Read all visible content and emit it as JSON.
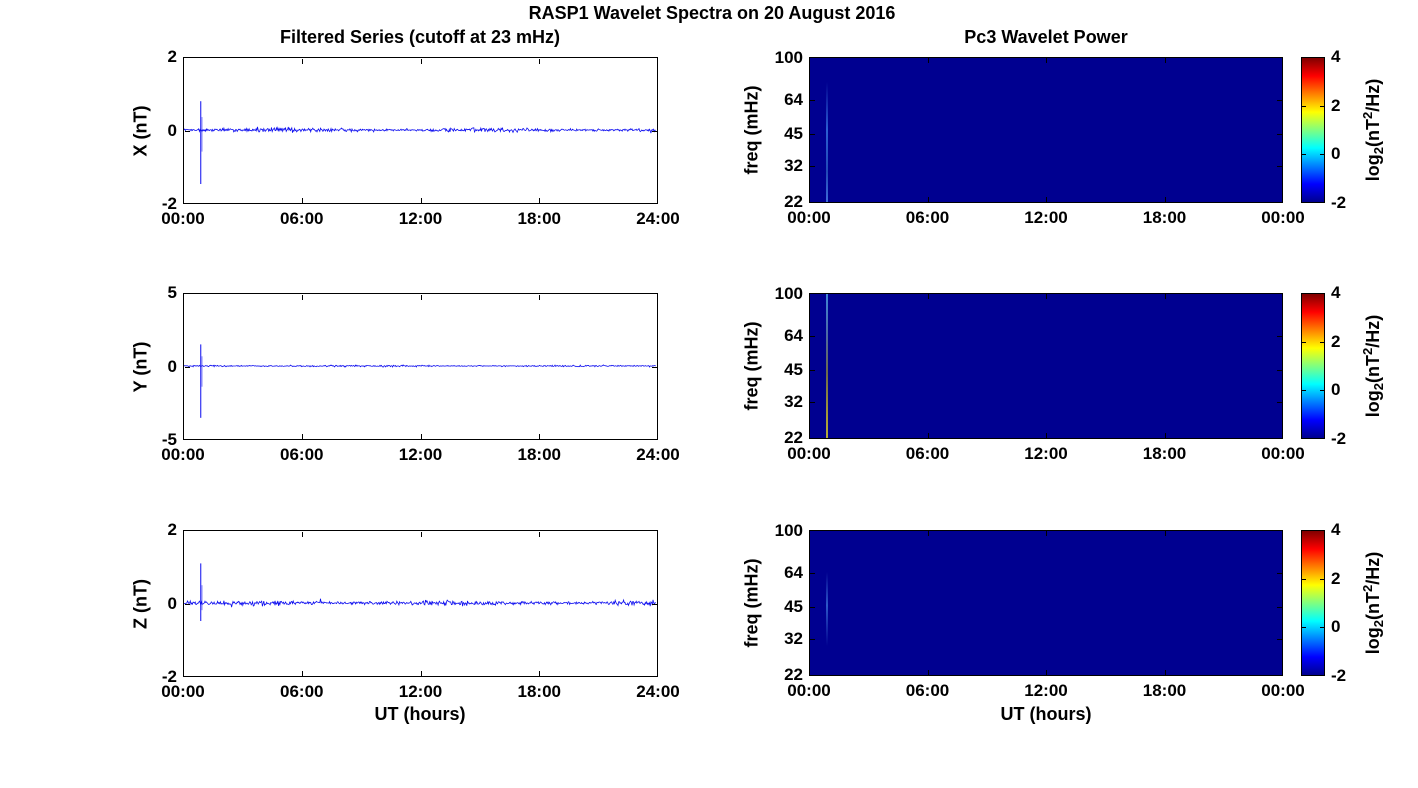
{
  "figure": {
    "title": "RASP1 Wavelet Spectra on 20 August 2016"
  },
  "left": {
    "title": "Filtered Series (cutoff at 23 mHz)",
    "xlabel": "UT (hours)",
    "xtick_labels": [
      "00:00",
      "06:00",
      "12:00",
      "18:00",
      "24:00"
    ],
    "line_color": "#0000ee",
    "panels": [
      {
        "ylabel": "X (nT)",
        "ytick_labels": [
          "2",
          "0",
          "-2"
        ]
      },
      {
        "ylabel": "Y (nT)",
        "ytick_labels": [
          "5",
          "0",
          "-5"
        ]
      },
      {
        "ylabel": "Z (nT)",
        "ytick_labels": [
          "2",
          "0",
          "-2"
        ]
      }
    ]
  },
  "right": {
    "title": "Pc3 Wavelet Power",
    "xlabel": "UT (hours)",
    "xtick_labels": [
      "00:00",
      "06:00",
      "12:00",
      "18:00",
      "00:00"
    ],
    "ylabel": "freq (mHz)",
    "ytick_labels": [
      "100",
      "64",
      "45",
      "32",
      "22"
    ],
    "background_color": "#000090",
    "colorbar": {
      "tick_labels": [
        "4",
        "2",
        "0",
        "-2"
      ],
      "label_pre": "log",
      "label_sub": "2",
      "label_mid": "(nT",
      "label_sup": "2",
      "label_post": "/Hz)"
    }
  },
  "chart_data": [
    {
      "type": "line",
      "component": "X",
      "title": "Filtered Series (cutoff at 23 mHz)",
      "xlabel": "UT (hours)",
      "x_range_hours": [
        0,
        24
      ],
      "xticks_hours": [
        0,
        6,
        12,
        18,
        24
      ],
      "xtick_labels": [
        "00:00",
        "06:00",
        "12:00",
        "18:00",
        "24:00"
      ],
      "ylabel": "X (nT)",
      "ylim": [
        -2,
        2
      ],
      "yticks": [
        2,
        0,
        -2
      ],
      "line_color": "#0000ee",
      "baseline_nT": 0,
      "noise_band_nT": 0.08,
      "spike": {
        "time_hours": 0.85,
        "time_ut": "~00:50",
        "peak_nT": 0.8,
        "trough_nT": -1.5
      }
    },
    {
      "type": "line",
      "component": "Y",
      "title": "Filtered Series (cutoff at 23 mHz)",
      "xlabel": "UT (hours)",
      "x_range_hours": [
        0,
        24
      ],
      "xticks_hours": [
        0,
        6,
        12,
        18,
        24
      ],
      "xtick_labels": [
        "00:00",
        "06:00",
        "12:00",
        "18:00",
        "24:00"
      ],
      "ylabel": "Y (nT)",
      "ylim": [
        -5,
        5
      ],
      "yticks": [
        5,
        0,
        -5
      ],
      "line_color": "#0000ee",
      "baseline_nT": 0,
      "noise_band_nT": 0.08,
      "spike": {
        "time_hours": 0.85,
        "time_ut": "~00:50",
        "peak_nT": 1.5,
        "trough_nT": -3.6
      }
    },
    {
      "type": "line",
      "component": "Z",
      "title": "Filtered Series (cutoff at 23 mHz)",
      "xlabel": "UT (hours)",
      "x_range_hours": [
        0,
        24
      ],
      "xticks_hours": [
        0,
        6,
        12,
        18,
        24
      ],
      "xtick_labels": [
        "00:00",
        "06:00",
        "12:00",
        "18:00",
        "24:00"
      ],
      "ylabel": "Z (nT)",
      "ylim": [
        -2,
        2
      ],
      "yticks": [
        2,
        0,
        -2
      ],
      "line_color": "#0000ee",
      "baseline_nT": 0,
      "noise_band_nT": 0.09,
      "spike": {
        "time_hours": 0.85,
        "time_ut": "~00:50",
        "peak_nT": 1.1,
        "trough_nT": -0.5
      }
    },
    {
      "type": "heatmap",
      "component": "X",
      "title": "Pc3 Wavelet Power",
      "xlabel": "UT (hours)",
      "x_range_hours": [
        0,
        24
      ],
      "xticks_hours": [
        0,
        6,
        12,
        18,
        24
      ],
      "xtick_labels": [
        "00:00",
        "06:00",
        "12:00",
        "18:00",
        "00:00"
      ],
      "ylabel": "freq (mHz)",
      "y_range_mHz": [
        22,
        100
      ],
      "y_scale": "log",
      "yticks_mHz": [
        100,
        64,
        45,
        32,
        22
      ],
      "colormap": "jet",
      "value_label": "log2(nT^2/Hz)",
      "value_range": [
        -2,
        4
      ],
      "colorbar_ticks": [
        4,
        2,
        0,
        -2
      ],
      "background_value": -2,
      "features": [
        {
          "type": "vertical_streak",
          "time_hours": 0.85,
          "freq_span_mHz": [
            22,
            78
          ],
          "peak_value": -0.7
        }
      ]
    },
    {
      "type": "heatmap",
      "component": "Y",
      "title": "Pc3 Wavelet Power",
      "xlabel": "UT (hours)",
      "x_range_hours": [
        0,
        24
      ],
      "xticks_hours": [
        0,
        6,
        12,
        18,
        24
      ],
      "xtick_labels": [
        "00:00",
        "06:00",
        "12:00",
        "18:00",
        "00:00"
      ],
      "ylabel": "freq (mHz)",
      "y_range_mHz": [
        22,
        100
      ],
      "y_scale": "log",
      "yticks_mHz": [
        100,
        64,
        45,
        32,
        22
      ],
      "colormap": "jet",
      "value_label": "log2(nT^2/Hz)",
      "value_range": [
        -2,
        4
      ],
      "colorbar_ticks": [
        4,
        2,
        0,
        -2
      ],
      "background_value": -2,
      "features": [
        {
          "type": "vertical_streak",
          "time_hours": 0.85,
          "freq_span_mHz": [
            22,
            100
          ],
          "peak_value": 1.5
        }
      ]
    },
    {
      "type": "heatmap",
      "component": "Z",
      "title": "Pc3 Wavelet Power",
      "xlabel": "UT (hours)",
      "x_range_hours": [
        0,
        24
      ],
      "xticks_hours": [
        0,
        6,
        12,
        18,
        24
      ],
      "xtick_labels": [
        "00:00",
        "06:00",
        "12:00",
        "18:00",
        "00:00"
      ],
      "ylabel": "freq (mHz)",
      "y_range_mHz": [
        22,
        100
      ],
      "y_scale": "log",
      "yticks_mHz": [
        100,
        64,
        45,
        32,
        22
      ],
      "colormap": "jet",
      "value_label": "log2(nT^2/Hz)",
      "value_range": [
        -2,
        4
      ],
      "colorbar_ticks": [
        4,
        2,
        0,
        -2
      ],
      "background_value": -2,
      "features": [
        {
          "type": "vertical_streak",
          "time_hours": 0.85,
          "freq_span_mHz": [
            30,
            65
          ],
          "peak_value": -1.0
        }
      ]
    }
  ]
}
